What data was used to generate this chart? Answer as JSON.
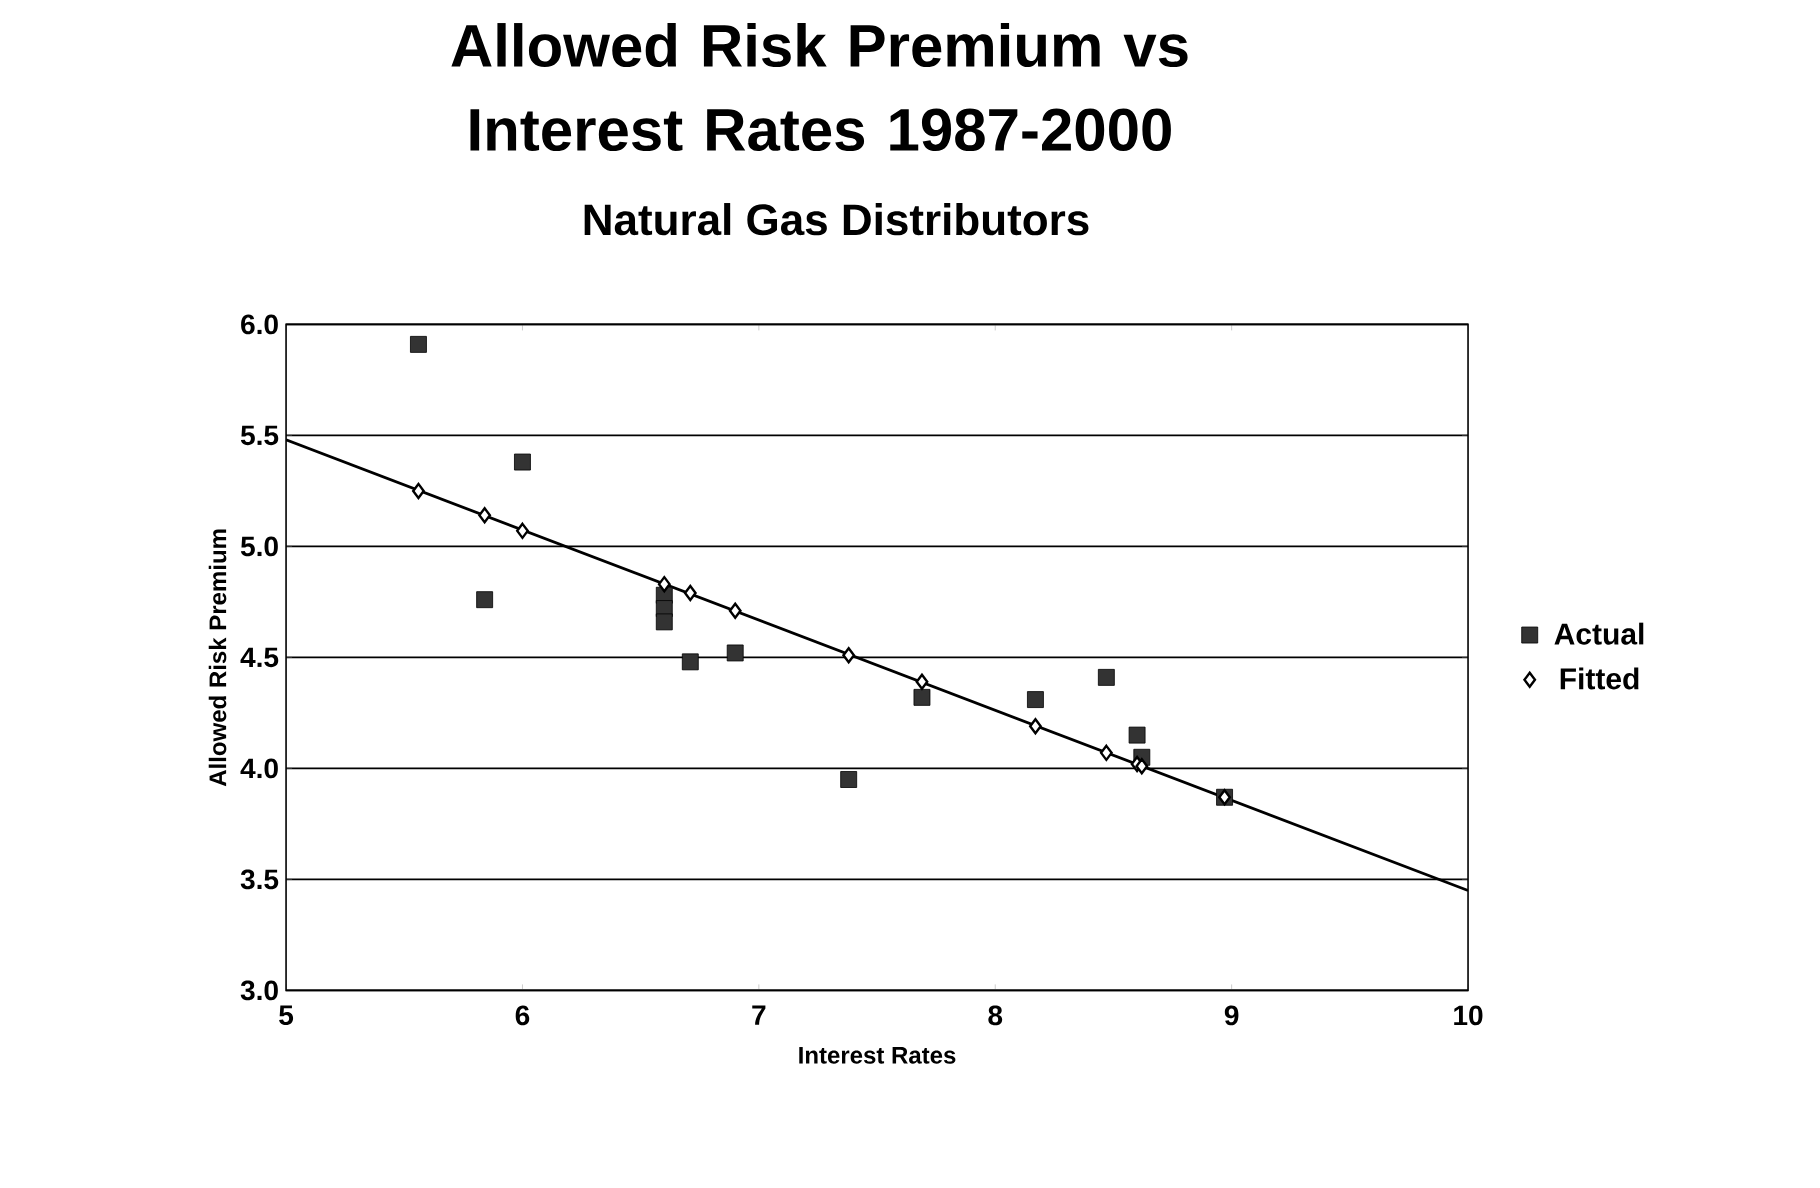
{
  "chart_data": {
    "type": "scatter",
    "title": "Allowed Risk Premium vs Interest Rates 1987-2000",
    "subtitle": "Natural Gas Distributors",
    "xlabel": "Interest Rates",
    "ylabel": "Allowed Risk Premium",
    "xlim": [
      5,
      10
    ],
    "xticks": [
      5,
      6,
      7,
      8,
      9,
      10
    ],
    "ylim": [
      3,
      6
    ],
    "yticks": [
      {
        "value": 3,
        "label": "3.0"
      },
      {
        "value": 3.5,
        "label": "3.5"
      },
      {
        "value": 4,
        "label": "4.0"
      },
      {
        "value": 4.5,
        "label": "4.5"
      },
      {
        "value": 5,
        "label": "5.0"
      },
      {
        "value": 5.5,
        "label": "5.5"
      },
      {
        "value": 6,
        "label": "6.0"
      }
    ],
    "grid": "y",
    "legend": "right",
    "series": [
      {
        "name": "Actual",
        "marker": "square",
        "color": "#333333",
        "x": [
          5.56,
          5.84,
          6.0,
          6.6,
          6.6,
          6.6,
          6.71,
          6.9,
          7.38,
          7.69,
          8.17,
          8.47,
          8.6,
          8.62,
          8.97
        ],
        "values": [
          5.91,
          4.76,
          5.38,
          4.78,
          4.72,
          4.66,
          4.48,
          4.52,
          3.95,
          4.32,
          4.31,
          4.41,
          4.15,
          4.05,
          3.87
        ]
      },
      {
        "name": "Fitted",
        "marker": "diamond",
        "color": "#000000",
        "x": [
          5.56,
          5.84,
          6.0,
          6.6,
          6.71,
          6.9,
          7.38,
          7.69,
          8.17,
          8.47,
          8.6,
          8.62,
          8.97
        ],
        "values": [
          5.25,
          5.14,
          5.07,
          4.83,
          4.79,
          4.71,
          4.51,
          4.39,
          4.19,
          4.07,
          4.02,
          4.01,
          3.87
        ]
      },
      {
        "type": "line",
        "marker": "none",
        "line_style": "solid",
        "color": "#000000",
        "x": [
          5,
          10
        ],
        "values": [
          5.48,
          3.45
        ]
      }
    ]
  }
}
